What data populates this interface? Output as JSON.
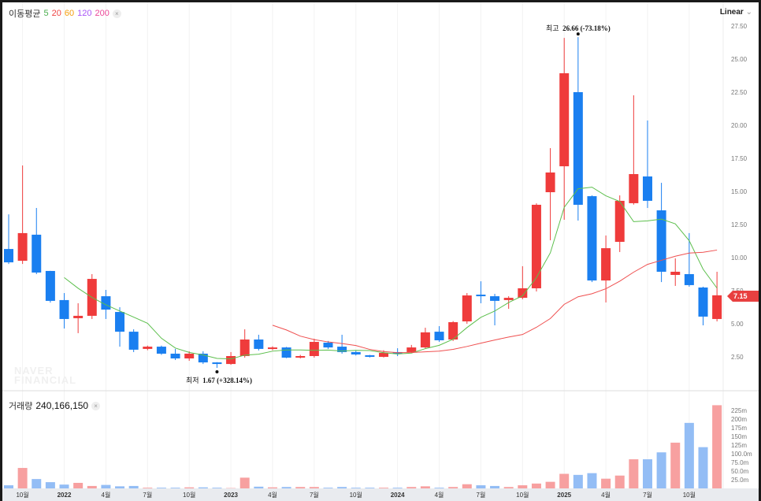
{
  "header": {
    "ma_label": "이동평균",
    "ma_periods": [
      {
        "label": "5",
        "color": "#4caf50"
      },
      {
        "label": "20",
        "color": "#ef4444"
      },
      {
        "label": "60",
        "color": "#f59e0b"
      },
      {
        "label": "120",
        "color": "#a855f7"
      },
      {
        "label": "200",
        "color": "#ec4899"
      }
    ],
    "close_icon": "×",
    "scale_label": "Linear",
    "scale_chevron": "⌄"
  },
  "volume_header": {
    "label": "거래량",
    "value": "240,166,150",
    "close_icon": "×"
  },
  "watermark": [
    "NAVER",
    "FINANCIAL"
  ],
  "annotations": {
    "high_label": "최고",
    "high_value": "26.66 (-73.18%)",
    "low_label": "최저",
    "low_value": "1.67 (+328.14%)"
  },
  "current_price": "7.15",
  "colors": {
    "up": "#ef3b3b",
    "down": "#1a7ff0",
    "up_vol": "#f7a0a0",
    "down_vol": "#93bdf5",
    "ma5": "#5cbf4c",
    "ma20": "#ef4f4f"
  },
  "chart_data": {
    "type": "candlestick",
    "interval": "monthly",
    "ylim": [
      0,
      28.5
    ],
    "y_ticks": [
      "2.50",
      "5.00",
      "7.50",
      "10.00",
      "12.50",
      "15.00",
      "17.50",
      "20.00",
      "22.50",
      "25.00",
      "27.50"
    ],
    "vol_ticks": [
      "25.0m",
      "50.0m",
      "75.0m",
      "100.0m",
      "125m",
      "150m",
      "175m",
      "200m",
      "225m"
    ],
    "x_labels": [
      {
        "i": 1,
        "t": "10월"
      },
      {
        "i": 4,
        "t": "2022"
      },
      {
        "i": 7,
        "t": "4월"
      },
      {
        "i": 10,
        "t": "7월"
      },
      {
        "i": 13,
        "t": "10월"
      },
      {
        "i": 16,
        "t": "2023"
      },
      {
        "i": 19,
        "t": "4월"
      },
      {
        "i": 22,
        "t": "7월"
      },
      {
        "i": 25,
        "t": "10월"
      },
      {
        "i": 28,
        "t": "2024"
      },
      {
        "i": 31,
        "t": "4월"
      },
      {
        "i": 34,
        "t": "7월"
      },
      {
        "i": 37,
        "t": "10월"
      },
      {
        "i": 40,
        "t": "2025"
      },
      {
        "i": 43,
        "t": "4월"
      },
      {
        "i": 46,
        "t": "7월"
      },
      {
        "i": 49,
        "t": "10월"
      }
    ],
    "ohlc": [
      [
        10.65,
        13.27,
        9.52,
        9.64
      ],
      [
        9.76,
        16.96,
        9.52,
        11.85
      ],
      [
        11.73,
        13.75,
        8.75,
        8.87
      ],
      [
        8.99,
        9.0,
        6.6,
        6.73
      ],
      [
        6.79,
        7.32,
        4.64,
        5.36
      ],
      [
        5.42,
        6.55,
        4.29,
        5.6
      ],
      [
        5.6,
        8.75,
        5.36,
        8.39
      ],
      [
        7.08,
        7.56,
        5.36,
        6.07
      ],
      [
        5.89,
        6.25,
        3.27,
        4.4
      ],
      [
        4.4,
        4.58,
        2.86,
        3.04
      ],
      [
        3.1,
        3.35,
        3.0,
        3.27
      ],
      [
        3.27,
        3.35,
        2.65,
        2.74
      ],
      [
        2.74,
        3.1,
        2.26,
        2.38
      ],
      [
        2.38,
        2.92,
        2.2,
        2.74
      ],
      [
        2.74,
        2.92,
        1.96,
        2.08
      ],
      [
        2.08,
        2.1,
        1.67,
        1.96
      ],
      [
        1.96,
        2.86,
        1.9,
        2.56
      ],
      [
        2.56,
        4.58,
        2.44,
        3.81
      ],
      [
        3.81,
        4.17,
        2.98,
        3.1
      ],
      [
        3.1,
        3.3,
        3.0,
        3.21
      ],
      [
        3.21,
        3.25,
        2.4,
        2.44
      ],
      [
        2.44,
        2.65,
        2.38,
        2.56
      ],
      [
        2.56,
        3.87,
        2.44,
        3.63
      ],
      [
        3.57,
        3.7,
        3.1,
        3.21
      ],
      [
        3.27,
        4.17,
        2.74,
        2.86
      ],
      [
        2.86,
        2.95,
        2.6,
        2.68
      ],
      [
        2.62,
        2.65,
        2.45,
        2.5
      ],
      [
        2.5,
        3.0,
        2.45,
        2.8
      ],
      [
        2.86,
        3.15,
        2.56,
        2.74
      ],
      [
        2.86,
        3.4,
        2.8,
        3.21
      ],
      [
        3.21,
        4.7,
        3.15,
        4.35
      ],
      [
        4.4,
        4.82,
        3.63,
        3.75
      ],
      [
        3.81,
        5.2,
        3.7,
        5.12
      ],
      [
        5.18,
        7.32,
        5.0,
        7.14
      ],
      [
        7.2,
        8.21,
        6.55,
        7.08
      ],
      [
        7.08,
        7.26,
        4.88,
        6.73
      ],
      [
        6.79,
        7.08,
        6.13,
        6.96
      ],
      [
        6.96,
        9.35,
        6.85,
        7.68
      ],
      [
        7.68,
        14.1,
        7.44,
        13.99
      ],
      [
        14.94,
        18.27,
        11.31,
        16.43
      ],
      [
        16.9,
        26.6,
        12.86,
        23.93
      ],
      [
        22.5,
        26.66,
        12.8,
        13.99
      ],
      [
        14.64,
        14.7,
        8.15,
        8.27
      ],
      [
        8.27,
        11.67,
        6.61,
        10.71
      ],
      [
        11.19,
        14.7,
        10.42,
        14.29
      ],
      [
        14.11,
        22.26,
        14.0,
        16.31
      ],
      [
        16.13,
        20.36,
        13.75,
        14.29
      ],
      [
        13.57,
        15.65,
        8.15,
        8.93
      ],
      [
        8.69,
        9.94,
        7.86,
        8.93
      ],
      [
        8.75,
        11.85,
        7.8,
        7.92
      ],
      [
        7.74,
        7.8,
        4.88,
        5.54
      ],
      [
        5.36,
        8.93,
        5.18,
        7.15
      ]
    ],
    "volume_m": [
      9,
      59,
      27,
      18,
      11,
      16,
      7,
      10,
      6,
      7,
      2,
      2,
      2,
      3,
      3,
      2,
      1,
      31,
      5,
      3,
      4,
      4,
      4,
      2,
      4,
      2,
      2,
      2,
      2,
      4,
      6,
      2,
      4,
      12,
      9,
      7,
      4,
      9,
      14,
      19,
      42,
      39,
      44,
      28,
      37,
      84,
      84,
      104,
      132,
      189,
      119,
      240
    ],
    "moving_averages": [
      5,
      20
    ]
  }
}
